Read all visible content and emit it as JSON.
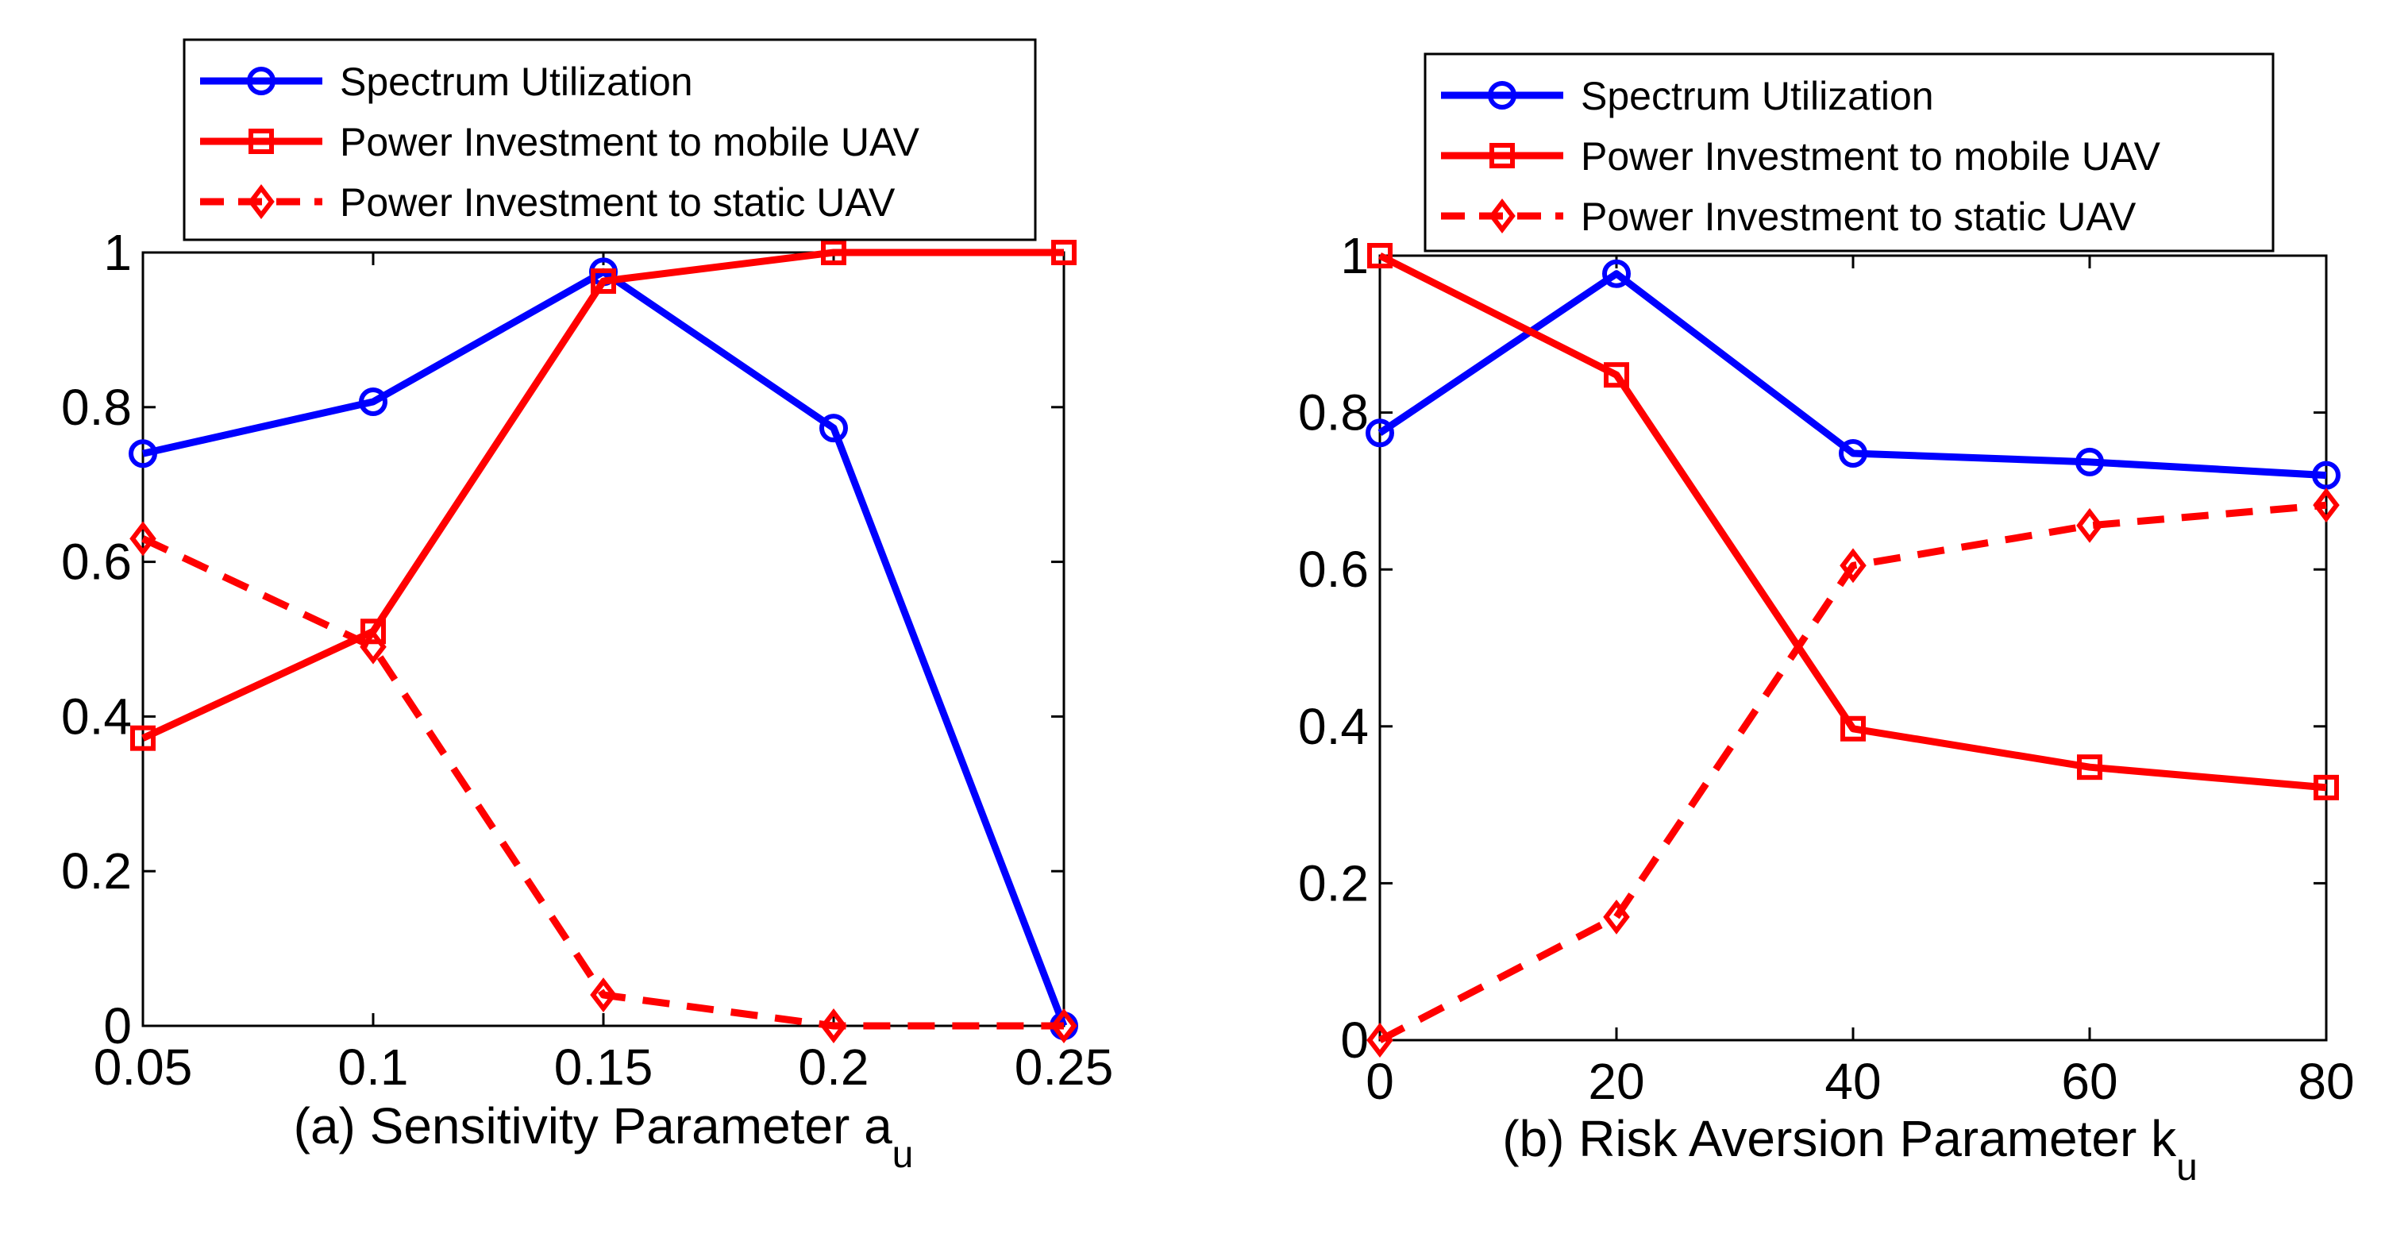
{
  "chart_data": [
    {
      "type": "line",
      "xlabel": "(a) Sensitivity Parameter a",
      "xlabel_subscript": "u",
      "ylabel": "",
      "x": [
        0.05,
        0.1,
        0.15,
        0.2,
        0.25
      ],
      "xticks": [
        "0.05",
        "0.1",
        "0.15",
        "0.2",
        "0.25"
      ],
      "xlim": [
        0.05,
        0.25
      ],
      "ylim": [
        0,
        1
      ],
      "yticks": [
        "0",
        "0.2",
        "0.4",
        "0.6",
        "0.8",
        "1"
      ],
      "legend_position": "top",
      "series": [
        {
          "name": "Spectrum Utilization",
          "values": [
            0.74,
            0.807,
            0.975,
            0.773,
            0.0
          ],
          "color": "#0000ff",
          "marker": "circle",
          "dash": "solid"
        },
        {
          "name": "Power Investment to mobile UAV",
          "values": [
            0.372,
            0.51,
            0.963,
            1.0,
            1.0
          ],
          "color": "#ff0000",
          "marker": "square",
          "dash": "solid"
        },
        {
          "name": "Power Investment to static UAV",
          "values": [
            0.63,
            0.49,
            0.04,
            0.0,
            0.0
          ],
          "color": "#ff0000",
          "marker": "diamond",
          "dash": "dashed"
        }
      ]
    },
    {
      "type": "line",
      "xlabel": "(b) Risk Aversion Parameter k",
      "xlabel_subscript": "u",
      "ylabel": "",
      "x": [
        0,
        20,
        40,
        60,
        80
      ],
      "xticks": [
        "0",
        "20",
        "40",
        "60",
        "80"
      ],
      "xlim": [
        0,
        80
      ],
      "ylim": [
        0,
        1
      ],
      "yticks": [
        "0",
        "0.2",
        "0.4",
        "0.6",
        "0.8",
        "1"
      ],
      "legend_position": "top",
      "series": [
        {
          "name": "Spectrum Utilization",
          "values": [
            0.774,
            0.977,
            0.748,
            0.737,
            0.72
          ],
          "color": "#0000ff",
          "marker": "circle",
          "dash": "solid"
        },
        {
          "name": "Power Investment to mobile UAV",
          "values": [
            1.0,
            0.848,
            0.397,
            0.348,
            0.322
          ],
          "color": "#ff0000",
          "marker": "square",
          "dash": "solid"
        },
        {
          "name": "Power Investment to static UAV",
          "values": [
            0.0,
            0.157,
            0.605,
            0.656,
            0.682
          ],
          "color": "#ff0000",
          "marker": "diamond",
          "dash": "dashed"
        }
      ]
    }
  ]
}
